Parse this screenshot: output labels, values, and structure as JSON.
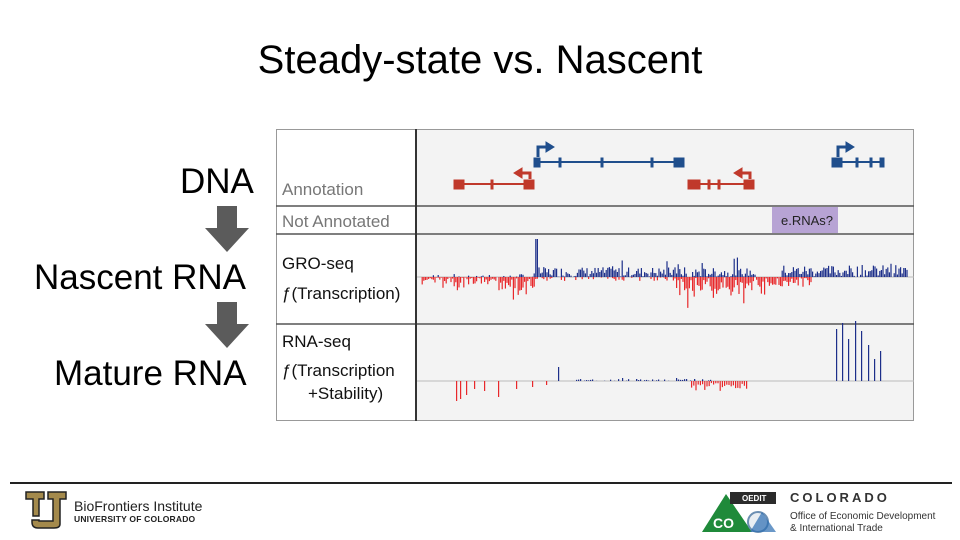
{
  "title": "Steady-state vs. Nascent",
  "flow": {
    "dna": "DNA",
    "nascent": "Nascent RNA",
    "mature": "Mature RNA",
    "arrow_color": "#5b5b5b"
  },
  "browser": {
    "tracks": {
      "annotation": "Annotation",
      "not_annotated": "Not Annotated",
      "gro_seq": "GRO-seq",
      "gro_func": "ƒ(Transcription)",
      "rna_seq": "RNA-seq",
      "rna_func1": "ƒ(Transcription",
      "rna_func2": "+Stability)",
      "ernas": "e.RNAs?"
    },
    "colors": {
      "plus": "#1d2f8a",
      "minus": "#e8282b",
      "gene_plus": "#1f4e8c",
      "gene_minus": "#c0392b",
      "erna_box": "#b7a3d4"
    }
  },
  "footer": {
    "cu_name": "BioFrontiers Institute",
    "cu_sub": "UNIVERSITY OF COLORADO",
    "co_badge": "OEDIT",
    "co_letters": "CO",
    "co_name": "COLORADO",
    "co_sub1": "Office of Economic Development",
    "co_sub2": "& International Trade"
  }
}
